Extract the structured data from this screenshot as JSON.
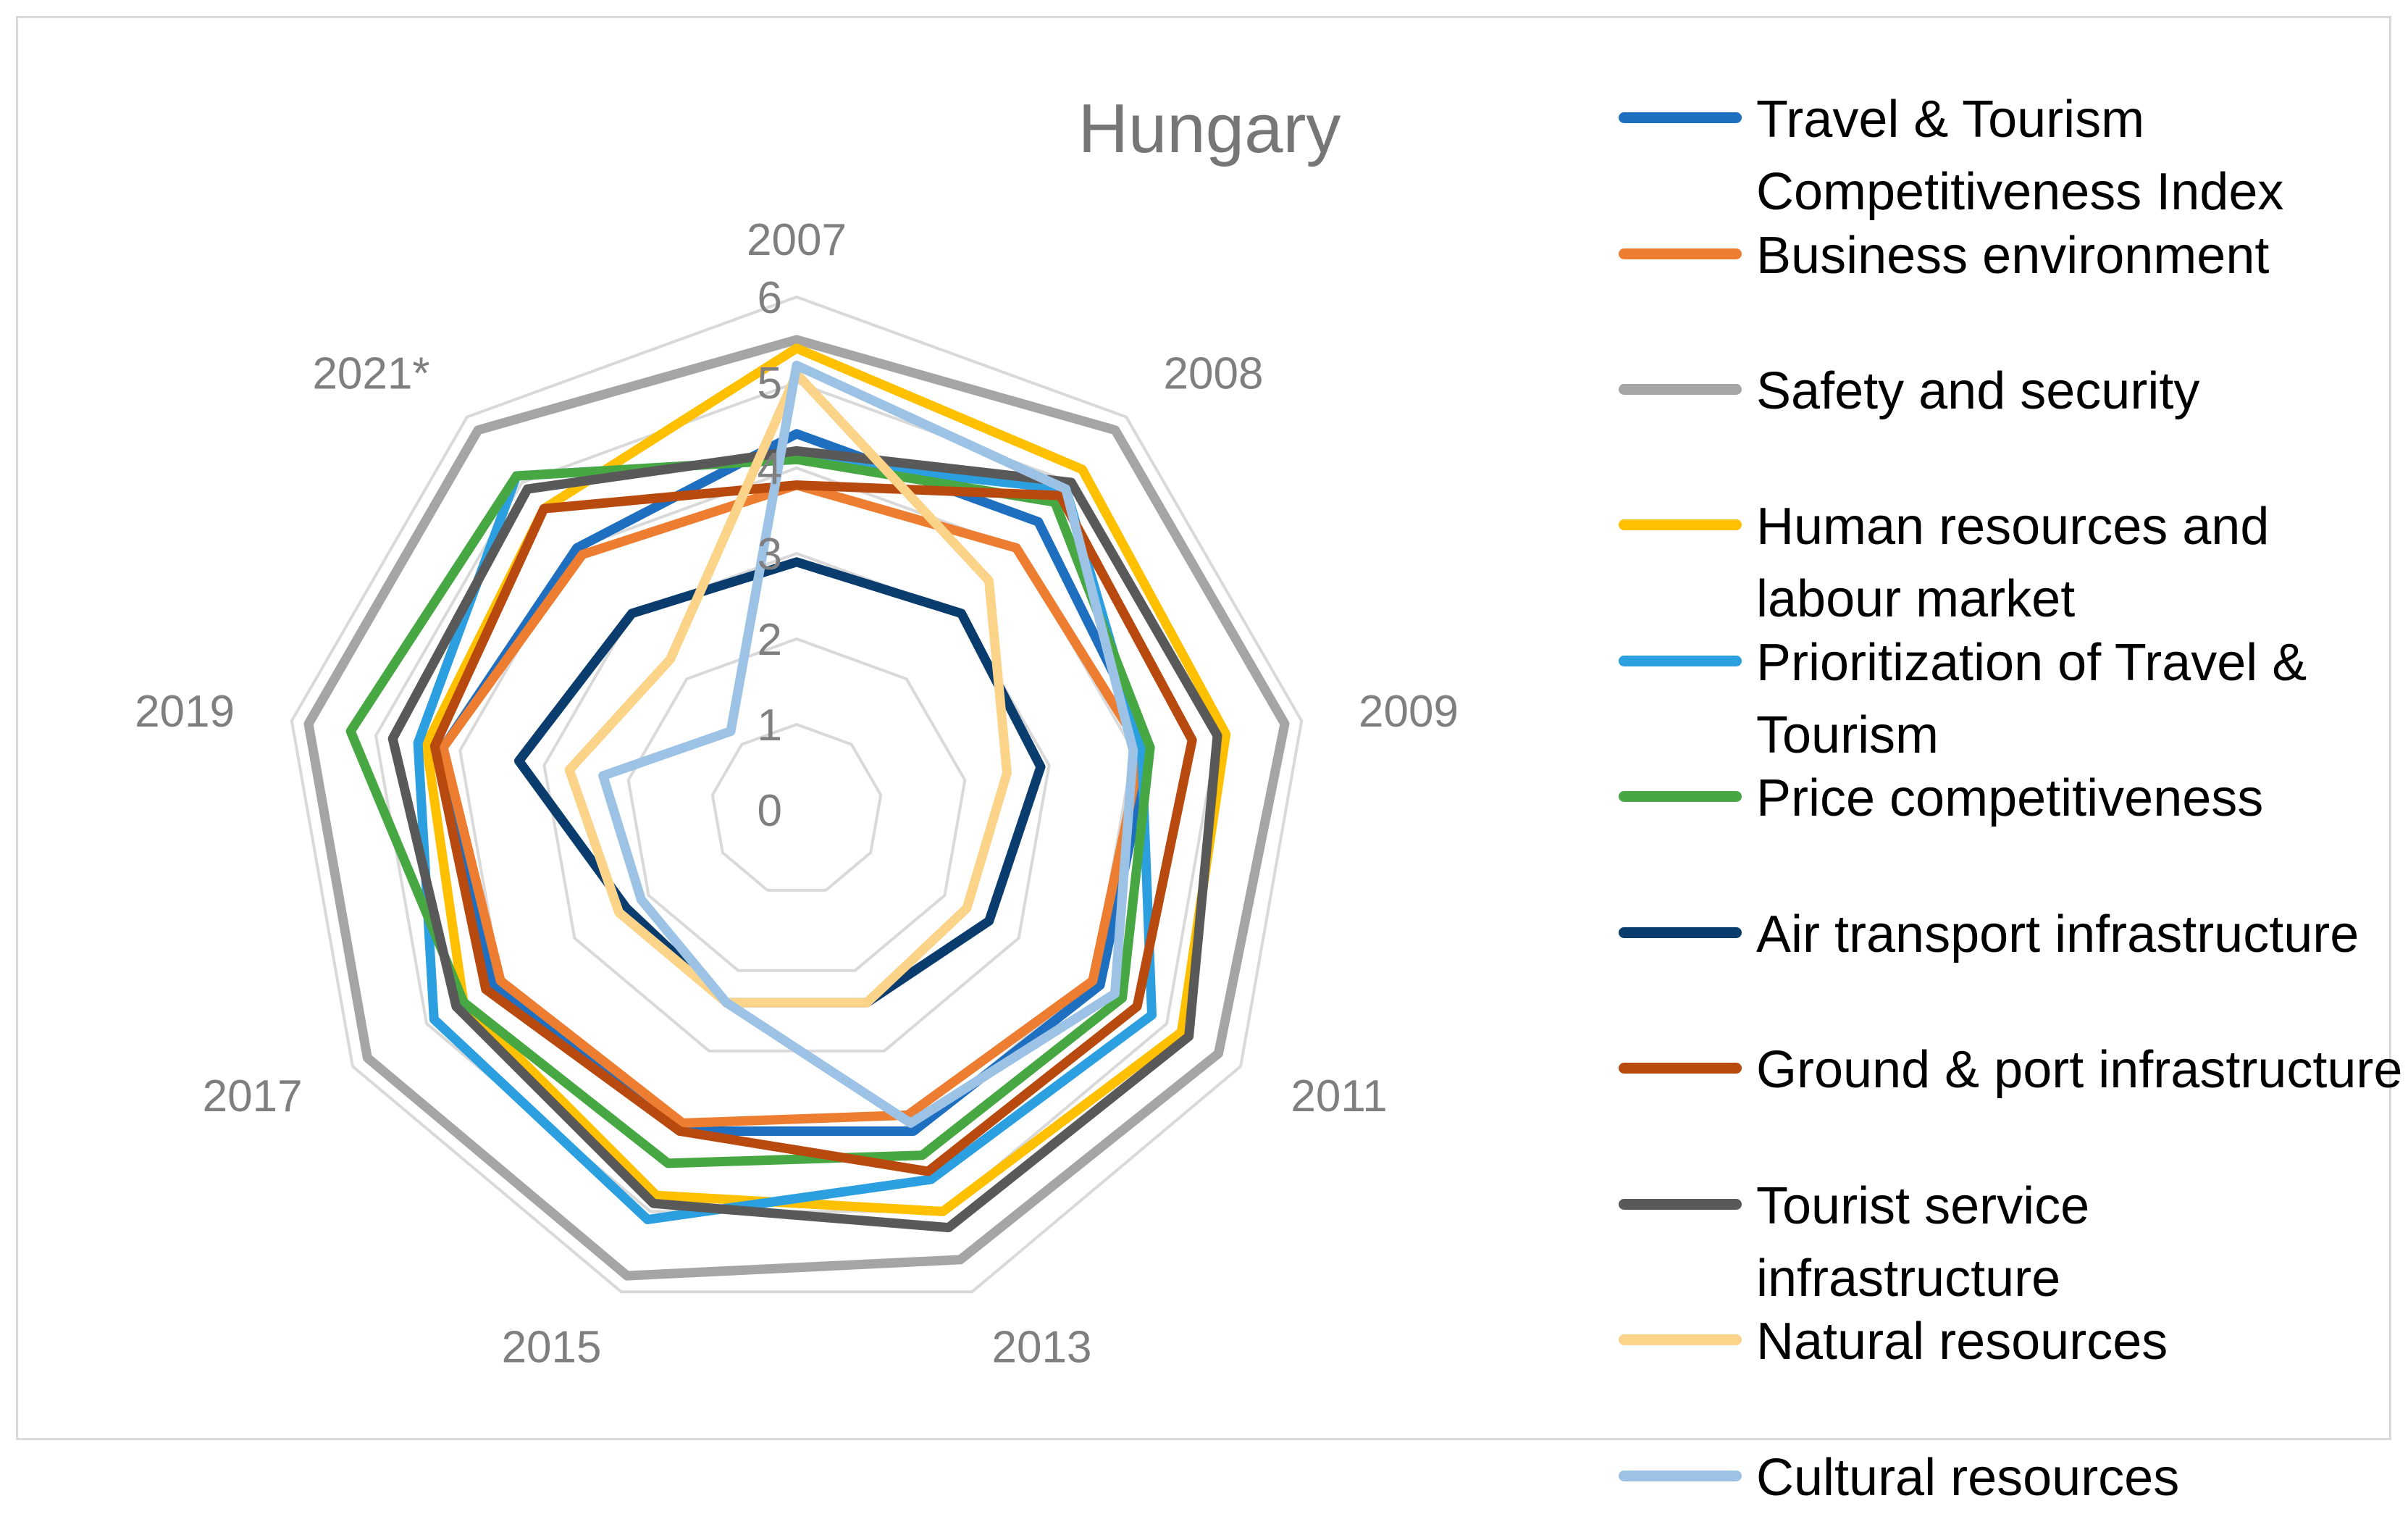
{
  "chart_data": {
    "type": "radar",
    "title": "Hungary",
    "categories": [
      "2007",
      "2008",
      "2009",
      "2011",
      "2013",
      "2015",
      "2017",
      "2019",
      "2021*"
    ],
    "radial_ticks": [
      "0",
      "1",
      "2",
      "3",
      "4",
      "5",
      "6"
    ],
    "rmax": 6,
    "grid": true,
    "legend_position": "right",
    "series": [
      {
        "name": "Travel & Tourism Competitiveness Index",
        "color": "#1f6fc1",
        "values": [
          4.4,
          4.4,
          4.2,
          4.1,
          4.0,
          4.0,
          4.1,
          4.2,
          4.0
        ]
      },
      {
        "name": "Business environment",
        "color": "#ed7d31",
        "values": [
          3.8,
          4.0,
          4.1,
          4.0,
          3.8,
          3.9,
          4.0,
          4.2,
          3.9
        ]
      },
      {
        "name": "Safety and security",
        "color": "#a5a5a5",
        "values": [
          5.5,
          5.8,
          5.8,
          5.7,
          5.6,
          5.8,
          5.8,
          5.8,
          5.8
        ]
      },
      {
        "name": "Human resources and labour market",
        "color": "#ffc000",
        "values": [
          5.4,
          5.2,
          5.1,
          5.2,
          5.0,
          4.8,
          4.5,
          4.4,
          4.6
        ]
      },
      {
        "name": "Prioritization of Travel & Tourism",
        "color": "#2b9fe0",
        "values": [
          4.1,
          4.9,
          4.1,
          4.8,
          4.6,
          5.1,
          4.9,
          4.5,
          5.1
        ]
      },
      {
        "name": "Price competitiveness",
        "color": "#47a843",
        "values": [
          4.1,
          4.7,
          4.2,
          4.4,
          4.3,
          4.4,
          4.5,
          5.3,
          5.1
        ]
      },
      {
        "name": "Air transport infrastructure",
        "color": "#0a3d6e",
        "values": [
          2.9,
          3.0,
          2.9,
          2.6,
          2.4,
          2.4,
          2.3,
          3.3,
          3.0
        ]
      },
      {
        "name": "Ground & port infrastructure",
        "color": "#b84a10",
        "values": [
          3.8,
          4.8,
          4.7,
          4.6,
          4.5,
          4.0,
          4.2,
          4.3,
          4.6
        ]
      },
      {
        "name": "Tourist service infrastructure",
        "color": "#595959",
        "values": [
          4.2,
          5.0,
          5.0,
          5.3,
          5.2,
          4.9,
          4.6,
          4.8,
          4.9
        ]
      },
      {
        "name": "Natural resources",
        "color": "#fbd48a",
        "values": [
          5.1,
          3.5,
          2.5,
          2.3,
          2.4,
          2.4,
          2.4,
          2.7,
          2.3
        ]
      },
      {
        "name": "Cultural resources",
        "color": "#9cc3e6",
        "values": [
          5.2,
          4.9,
          4.0,
          4.3,
          3.9,
          2.4,
          2.1,
          2.3,
          1.2
        ]
      }
    ]
  }
}
